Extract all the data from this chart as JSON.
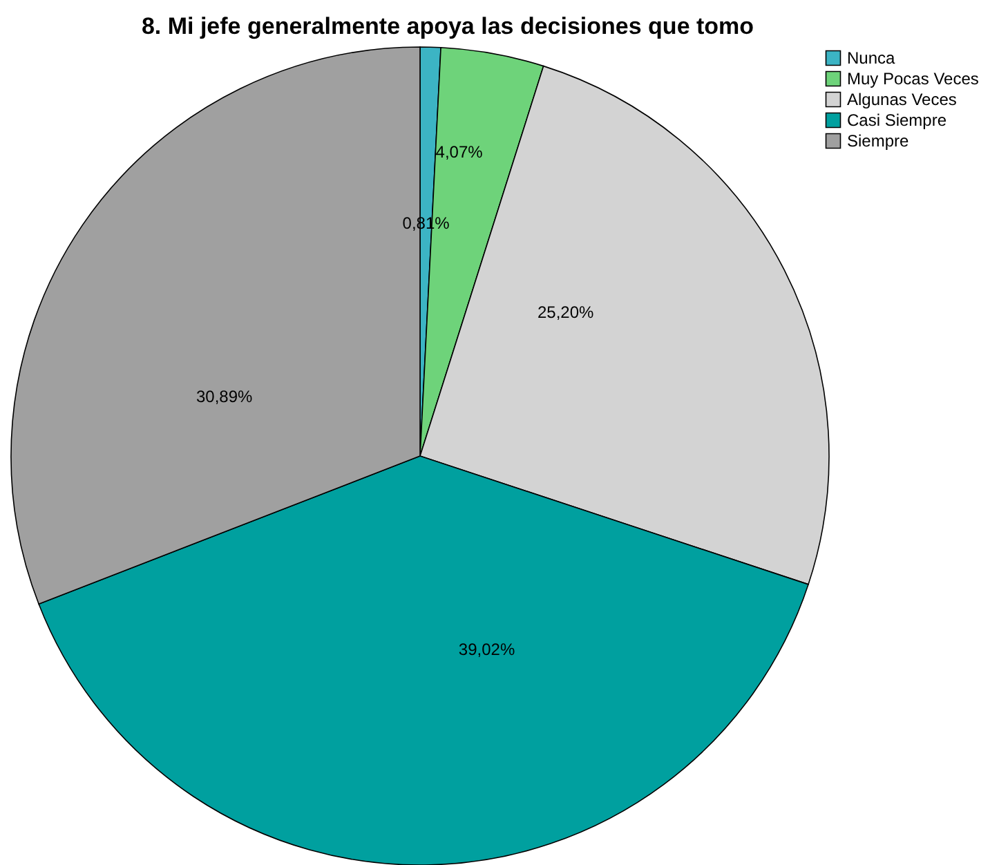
{
  "chart_data": {
    "type": "pie",
    "title": "8. Mi jefe generalmente apoya las decisiones que tomo",
    "categories": [
      "Nunca",
      "Muy Pocas Veces",
      "Algunas Veces",
      "Casi Siempre",
      "Siempre"
    ],
    "values": [
      0.81,
      4.07,
      25.2,
      39.02,
      30.89
    ],
    "colors": [
      "#3cb4c4",
      "#6ed37a",
      "#d3d3d3",
      "#00a09f",
      "#a0a0a0"
    ],
    "value_labels": [
      "0,81%",
      "4,07%",
      "25,20%",
      "39,02%",
      "30,89%"
    ],
    "legend": "top right"
  }
}
